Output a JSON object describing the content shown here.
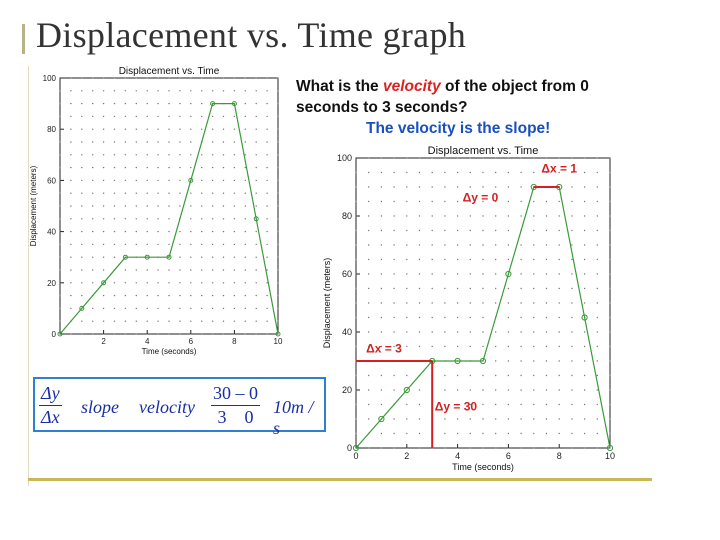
{
  "slide": {
    "title": "Displacement vs. Time graph"
  },
  "question": {
    "prefix": "What is the",
    "highlight": "velocity",
    "suffix": "of the object from 0 seconds to 3 seconds?",
    "answer": "The velocity is the slope!"
  },
  "formula": {
    "dy": "Δy",
    "dx": "Δx",
    "slope": "slope",
    "velocity": "velocity",
    "num": "30 – 0",
    "den": "3    0",
    "result": "10m / s"
  },
  "annotations": {
    "dx_top": "Δx = 1",
    "dy_top": "Δy = 0",
    "dx_bottom": "Δx = 3",
    "dy_bottom": "Δy = 30"
  },
  "colors": {
    "line": "#3a9a3a",
    "annotation": "#d42020",
    "formula_border": "#2f7fd4"
  },
  "chart_data": [
    {
      "type": "line",
      "title": "Displacement vs. Time",
      "xlabel": "Time (seconds)",
      "ylabel": "Displacement (meters)",
      "xlim": [
        0,
        10
      ],
      "ylim": [
        0,
        100
      ],
      "xticks": [
        "2",
        "4",
        "6",
        "8",
        "10"
      ],
      "yticks": [
        "0",
        "20",
        "40",
        "60",
        "80",
        "100"
      ],
      "grid": true,
      "x": [
        0,
        1,
        2,
        3,
        4,
        5,
        6,
        7,
        8,
        9,
        10
      ],
      "y": [
        0,
        10,
        20,
        30,
        30,
        30,
        60,
        90,
        90,
        45,
        0
      ]
    },
    {
      "type": "line",
      "title": "Displacement vs. Time",
      "xlabel": "Time (seconds)",
      "ylabel": "Displacement (meters)",
      "xlim": [
        0,
        10
      ],
      "ylim": [
        0,
        100
      ],
      "xticks": [
        "0",
        "2",
        "4",
        "6",
        "8",
        "10"
      ],
      "yticks": [
        "0",
        "20",
        "40",
        "60",
        "80",
        "100"
      ],
      "grid": true,
      "x": [
        0,
        1,
        2,
        3,
        4,
        5,
        6,
        7,
        8,
        9,
        10
      ],
      "y": [
        0,
        10,
        20,
        30,
        30,
        30,
        60,
        90,
        90,
        45,
        0
      ]
    }
  ]
}
